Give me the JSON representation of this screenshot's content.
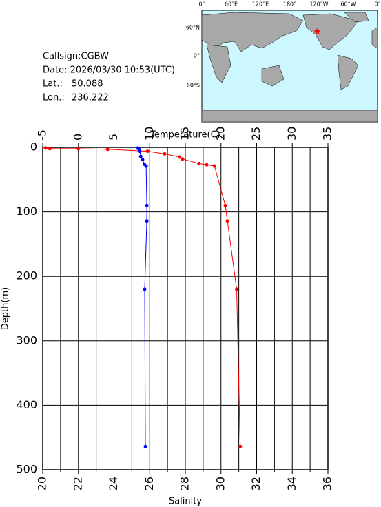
{
  "header": {
    "callsign": "Callsign:CGBW",
    "date": "Date:  2026/03/30 10:53(UTC)",
    "lat_label": "Lat.:",
    "lat": 50.088,
    "lon_label": "Lon.:",
    "lon": 236.222
  },
  "map": {
    "lon_labels": [
      "0°",
      "60°E",
      "120°E",
      "180°",
      "120°W",
      "60°W",
      "0°"
    ],
    "lat_labels": [
      "60°N",
      "0°",
      "60°S"
    ],
    "star_color": "#ff0000"
  },
  "chart_data": {
    "type": "line",
    "x2label": "Temperature(C)",
    "x2lim": [
      -5,
      35
    ],
    "x2ticks": [
      -5,
      0,
      5,
      10,
      15,
      20,
      25,
      30,
      35
    ],
    "xlabel": "Salinity",
    "xlim": [
      20,
      36
    ],
    "xticks": [
      20,
      22,
      24,
      26,
      28,
      30,
      32,
      34,
      36
    ],
    "xminor": [
      21,
      23,
      25,
      27,
      29,
      31,
      33,
      35
    ],
    "ylabel": "Depth(m)",
    "ylim": [
      0,
      500
    ],
    "y_inverted": true,
    "yticks": [
      0,
      100,
      200,
      300,
      400,
      500
    ],
    "grid": true,
    "series": [
      {
        "color": "#ff0000",
        "axis": "x2",
        "x": [
          -4.6,
          -4.0,
          0,
          4.1,
          9.7,
          12.1,
          14.2,
          14.6,
          16.9,
          18.0,
          19.1,
          20.6,
          20.9,
          22.2,
          22.7
        ],
        "y": [
          1,
          2,
          2,
          3,
          6,
          10,
          15,
          18,
          25,
          27,
          29,
          90,
          114,
          220,
          464
        ]
      },
      {
        "color": "#0000ff",
        "axis": "x",
        "x": [
          25.33,
          25.4,
          25.45,
          25.5,
          25.6,
          25.7,
          25.8,
          25.84,
          25.84,
          25.72,
          25.76
        ],
        "y": [
          1,
          3,
          6,
          14,
          19,
          26,
          29,
          90,
          114,
          220,
          464
        ]
      }
    ]
  }
}
